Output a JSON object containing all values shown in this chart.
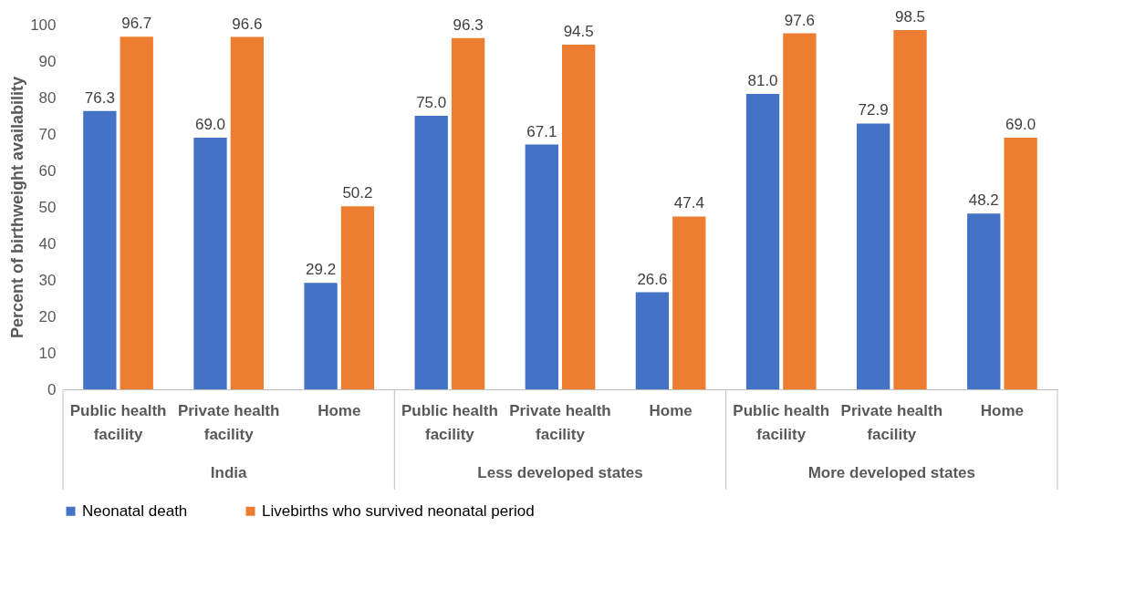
{
  "chart_data": {
    "type": "bar",
    "ylabel": "Percent of birthweight availability",
    "categories": [
      "Public health facility",
      "Private health facility",
      "Home",
      "Public health facility",
      "Private health facility",
      "Home",
      "Public health facility",
      "Private health facility",
      "Home"
    ],
    "annotations": [
      "India",
      "Less developed states",
      "More developed states"
    ],
    "series": [
      {
        "name": "Neonatal death",
        "color": "#4472c4",
        "values": [
          76.3,
          69.0,
          29.2,
          75.0,
          67.1,
          26.6,
          81.0,
          72.9,
          48.2
        ],
        "value_labels": [
          "76.3",
          "69.0",
          "29.2",
          "75.0",
          "67.1",
          "26.6",
          "81.0",
          "72.9",
          "48.2"
        ]
      },
      {
        "name": "Livebirths who survived neonatal period",
        "color": "#ed7d31",
        "values": [
          96.7,
          96.6,
          50.2,
          96.3,
          94.5,
          47.4,
          97.6,
          98.5,
          69.0
        ],
        "value_labels": [
          "96.7",
          "96.6",
          "50.2",
          "96.3",
          "94.5",
          "47.4",
          "97.6",
          "98.5",
          "69.0"
        ]
      }
    ],
    "ylim": [
      0,
      100
    ],
    "yticks": [
      0,
      10,
      20,
      30,
      40,
      50,
      60,
      70,
      80,
      90,
      100
    ],
    "grid": false,
    "legend": "bottom"
  }
}
